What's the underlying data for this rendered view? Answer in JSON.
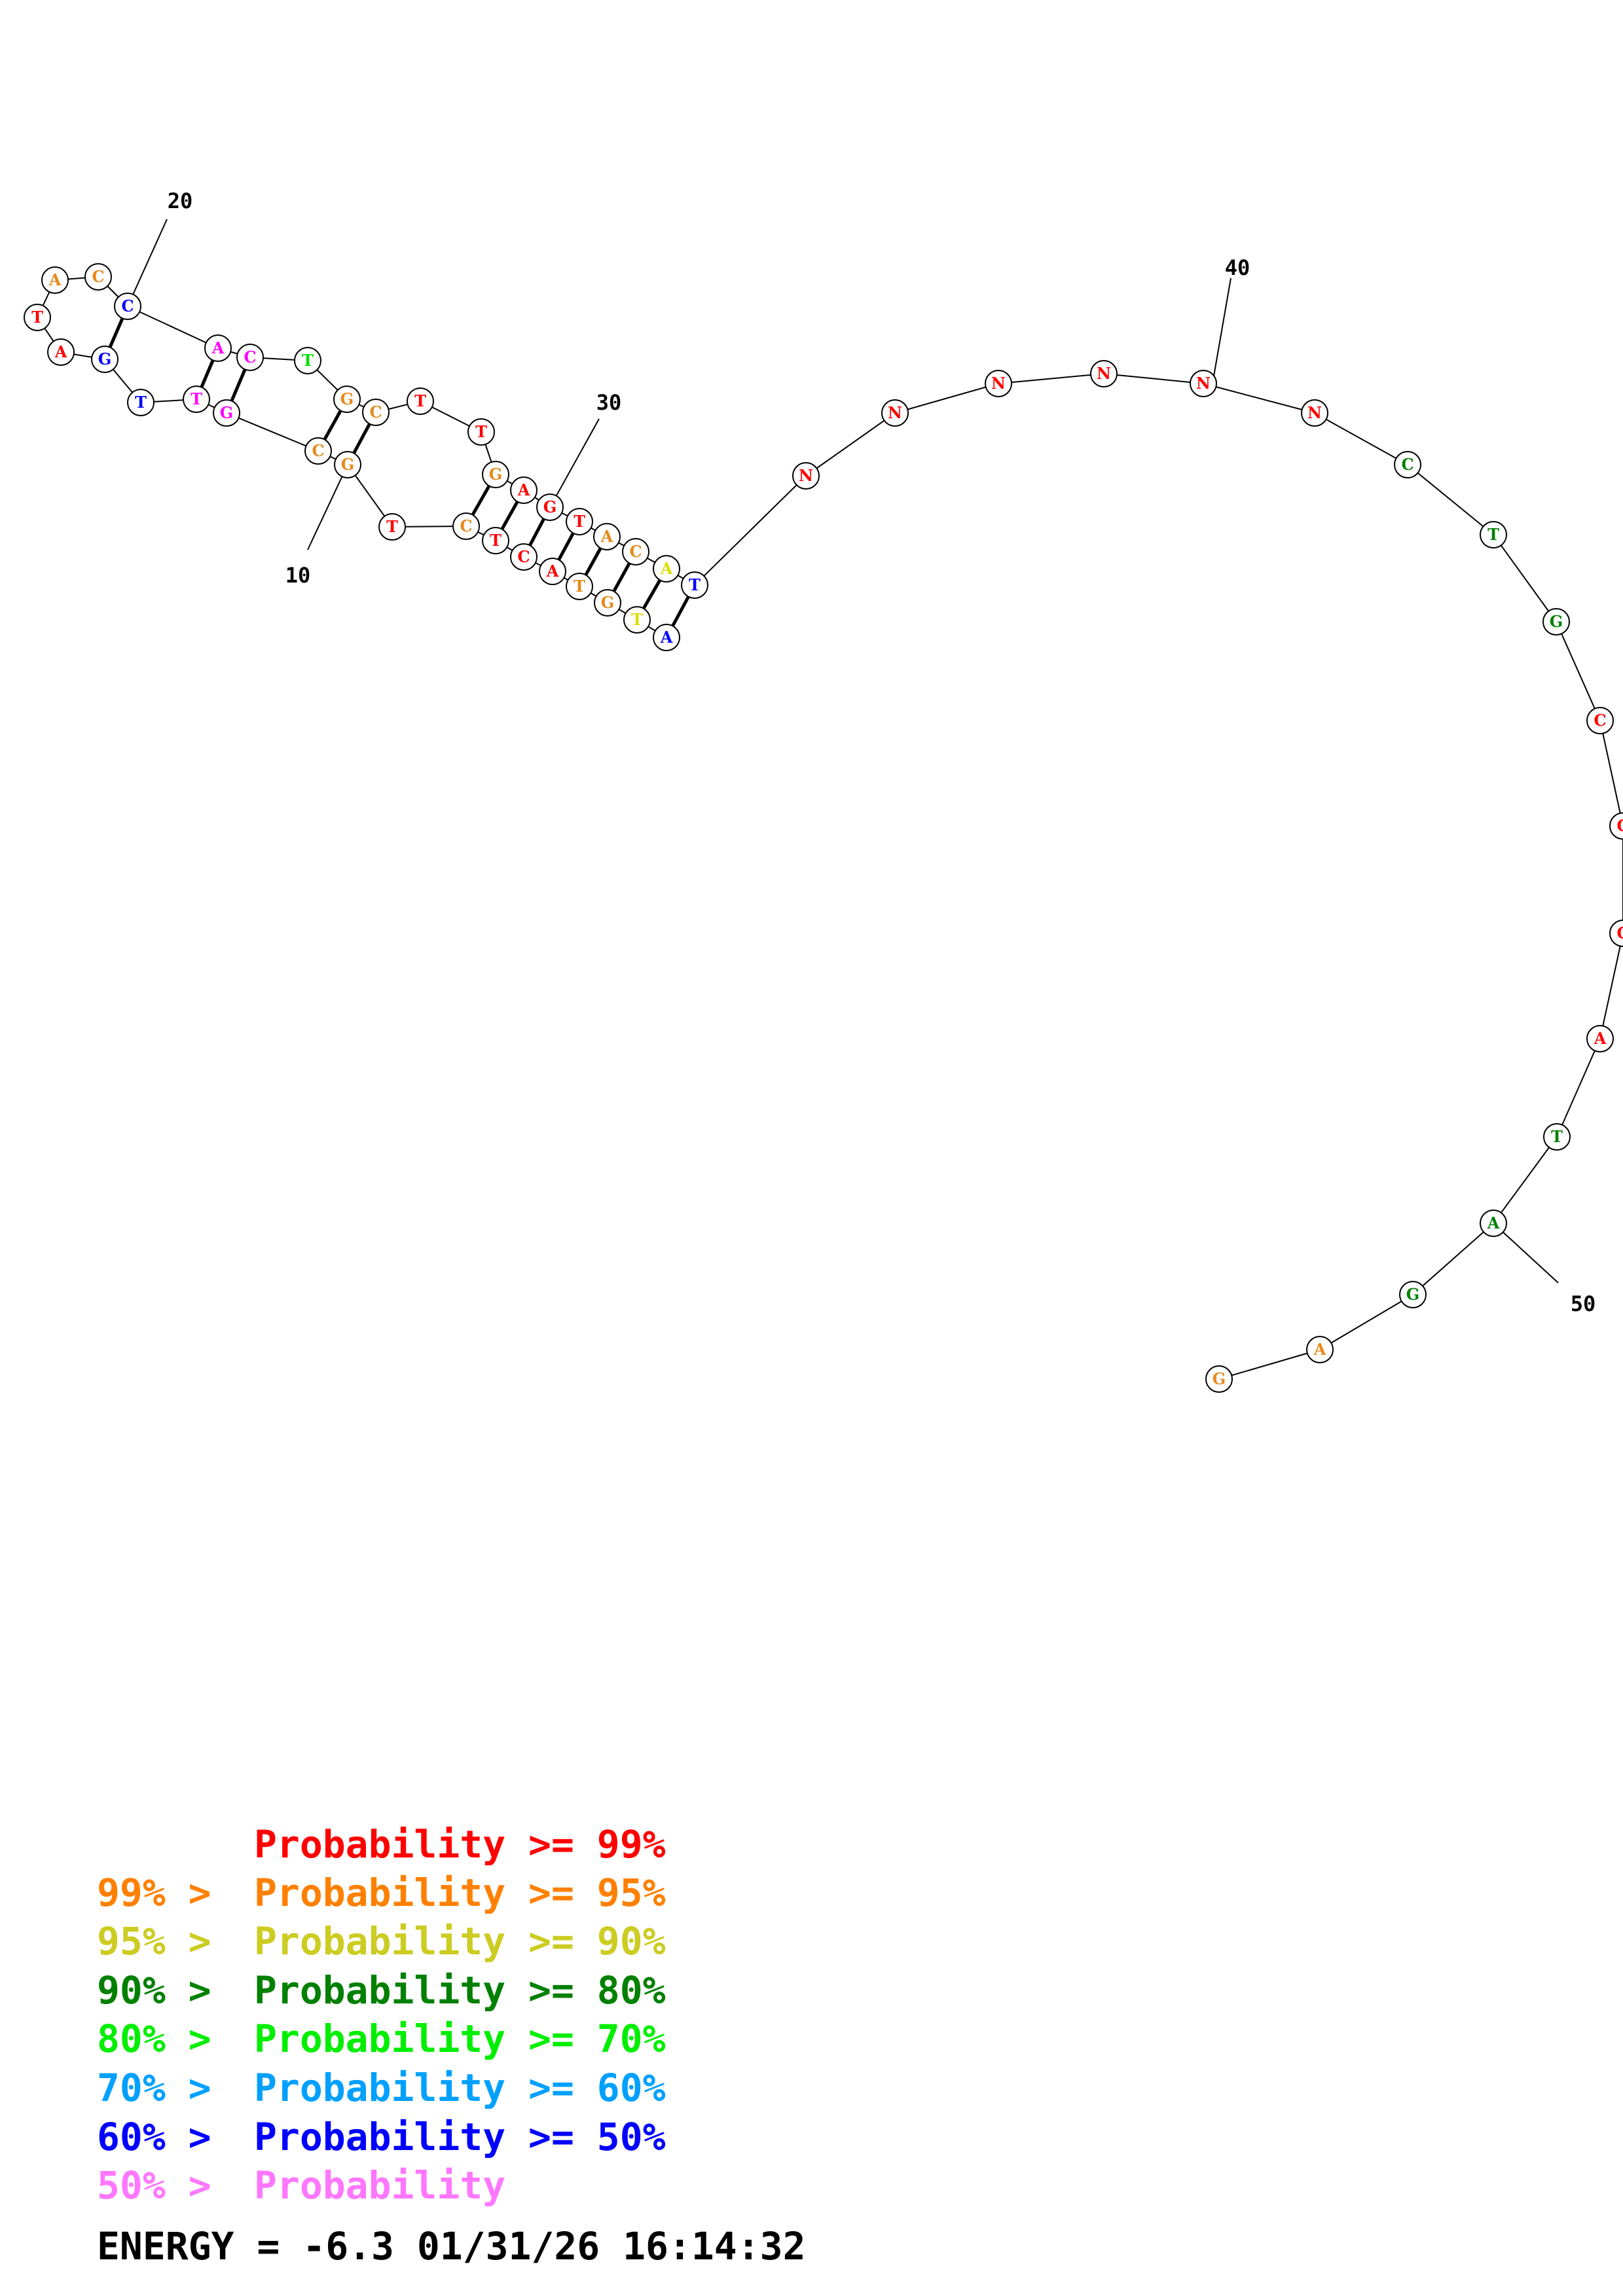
{
  "structure": {
    "nucleotides": [
      {
        "base": "G",
        "color": "#e8891a"
      },
      {
        "base": "A",
        "color": "#e8891a"
      },
      {
        "base": "C",
        "color": "#ff0000"
      },
      {
        "base": "T",
        "color": "#ff0000"
      },
      {
        "base": "G",
        "color": "#e8891a"
      },
      {
        "base": "C",
        "color": "#e8891a"
      },
      {
        "base": "A",
        "color": "#ff00ff"
      },
      {
        "base": "C",
        "color": "#ff00ff"
      },
      {
        "base": "T",
        "color": "#00dd00"
      },
      {
        "base": "G",
        "color": "#e8891a"
      },
      {
        "base": "C",
        "color": "#e8891a"
      },
      {
        "base": "T",
        "color": "#ff0000"
      },
      {
        "base": "T",
        "color": "#ff0000"
      },
      {
        "base": "G",
        "color": "#e8891a"
      },
      {
        "base": "A",
        "color": "#ff0000"
      },
      {
        "base": "G",
        "color": "#ff0000"
      },
      {
        "base": "T",
        "color": "#ff0000"
      },
      {
        "base": "A",
        "color": "#e8891a"
      },
      {
        "base": "C",
        "color": "#e8891a"
      },
      {
        "base": "A",
        "color": "#dddd00"
      },
      {
        "base": "T",
        "color": "#0000ff"
      },
      {
        "base": "N",
        "color": "#ff0000"
      },
      {
        "base": "N",
        "color": "#ff0000"
      },
      {
        "base": "N",
        "color": "#ff0000"
      },
      {
        "base": "N",
        "color": "#ff0000"
      },
      {
        "base": "N",
        "color": "#ff0000"
      },
      {
        "base": "N",
        "color": "#ff0000"
      },
      {
        "base": "C",
        "color": "#008000"
      },
      {
        "base": "T",
        "color": "#008000"
      },
      {
        "base": "G",
        "color": "#008000"
      },
      {
        "base": "C",
        "color": "#ff0000"
      },
      {
        "base": "C",
        "color": "#ff0000"
      },
      {
        "base": "C",
        "color": "#ff0000"
      },
      {
        "base": "A",
        "color": "#ff0000"
      },
      {
        "base": "T",
        "color": "#008000"
      },
      {
        "base": "A",
        "color": "#008000"
      },
      {
        "base": "G",
        "color": "#008000"
      },
      {
        "base": "A",
        "color": "#e8891a"
      },
      {
        "base": "G",
        "color": "#e8891a"
      }
    ],
    "upstream": [
      {
        "base": "A",
        "color": "#0000ff"
      },
      {
        "base": "T",
        "color": "#dddd00"
      },
      {
        "base": "G",
        "color": "#e8891a"
      },
      {
        "base": "T",
        "color": "#e8891a"
      },
      {
        "base": "A",
        "color": "#ff0000"
      },
      {
        "base": "C",
        "color": "#ff0000"
      },
      {
        "base": "T",
        "color": "#ff0000"
      },
      {
        "base": "C",
        "color": "#e8891a"
      },
      {
        "base": "T",
        "color": "#ff0000"
      },
      {
        "base": "G",
        "color": "#e8891a"
      },
      {
        "base": "C",
        "color": "#e8891a"
      },
      {
        "base": "G",
        "color": "#ff00ff"
      },
      {
        "base": "T",
        "color": "#ff00ff"
      },
      {
        "base": "T",
        "color": "#0000ff"
      },
      {
        "base": "G",
        "color": "#0000ff"
      },
      {
        "base": "A",
        "color": "#ff0000"
      },
      {
        "base": "T",
        "color": "#ff0000"
      },
      {
        "base": "A",
        "color": "#e8891a"
      },
      {
        "base": "C",
        "color": "#e8891a"
      },
      {
        "base": "C",
        "color": "#0000ff"
      }
    ],
    "position_labels": [
      {
        "label": "10",
        "anchor": "upstream",
        "index": 9
      },
      {
        "label": "20",
        "anchor": "upstream",
        "index": 19
      },
      {
        "label": "30",
        "anchor": "strand",
        "index": 15
      },
      {
        "label": "40",
        "anchor": "strand",
        "index": 25
      },
      {
        "label": "50",
        "anchor": "strand",
        "index": 35
      }
    ],
    "base_pairs": [
      [
        0,
        20
      ],
      [
        1,
        19
      ],
      [
        2,
        18
      ],
      [
        3,
        17
      ],
      [
        4,
        16
      ],
      [
        5,
        15
      ],
      [
        6,
        14
      ],
      [
        7,
        13
      ],
      [
        10,
        9
      ],
      [
        11,
        8
      ],
      [
        14,
        6
      ],
      [
        15,
        5
      ],
      [
        19,
        0
      ]
    ]
  },
  "legend": [
    {
      "prefix": "",
      "text": "Probability >= 99%",
      "color": "#ff0000"
    },
    {
      "prefix": "99% > ",
      "text": "Probability >= 95%",
      "color": "#ff8000"
    },
    {
      "prefix": "95% > ",
      "text": "Probability >= 90%",
      "color": "#cccc22"
    },
    {
      "prefix": "90% > ",
      "text": "Probability >= 80%",
      "color": "#008000"
    },
    {
      "prefix": "80% > ",
      "text": "Probability >= 70%",
      "color": "#00ee00"
    },
    {
      "prefix": "70% > ",
      "text": "Probability >= 60%",
      "color": "#00a0ff"
    },
    {
      "prefix": "60% > ",
      "text": "Probability >= 50%",
      "color": "#0000ff"
    },
    {
      "prefix": "50% > ",
      "text": "Probability",
      "color": "#ff77ff"
    }
  ],
  "footer": {
    "energy": "ENERGY = -6.3  01/31/26 16:14:32"
  }
}
